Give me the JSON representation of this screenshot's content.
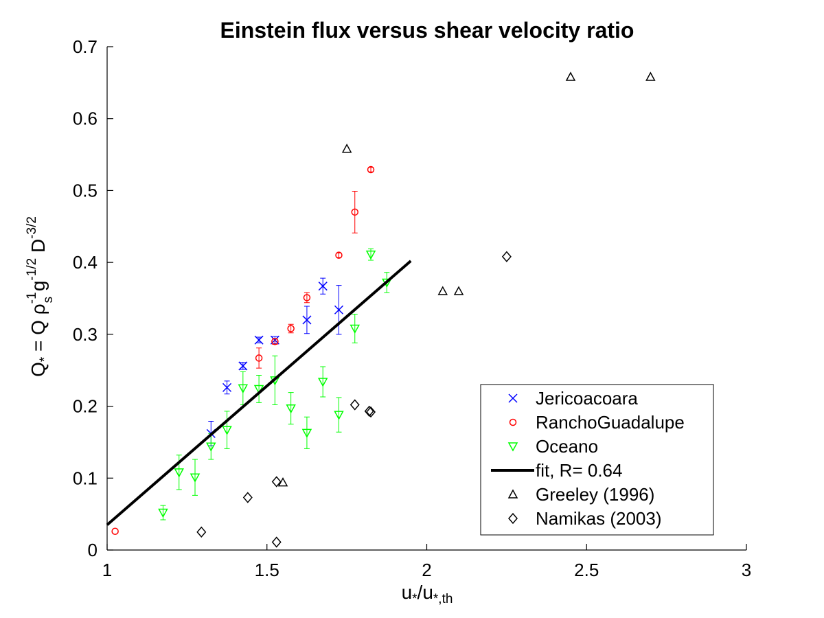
{
  "chart_data": {
    "type": "scatter",
    "title": "Einstein flux versus shear velocity ratio",
    "xlabel": {
      "main": "u",
      "sub1": "*",
      "mid": "/u",
      "sub2": "*,th"
    },
    "ylabel": {
      "main": "Q",
      "sub_star": "*",
      "eq": " = Q ",
      "rho": "ρ",
      "rho_sup": "-1",
      "rho_sub": "s",
      "g": " g",
      "g_sup": "-1/2",
      "D": " D",
      "D_sup": "-3/2"
    },
    "xlim": [
      1,
      3
    ],
    "ylim": [
      0,
      0.7
    ],
    "xticks": [
      {
        "v": 1,
        "label": "1"
      },
      {
        "v": 1.5,
        "label": "1.5"
      },
      {
        "v": 2,
        "label": "2"
      },
      {
        "v": 2.5,
        "label": "2.5"
      },
      {
        "v": 3,
        "label": "3"
      }
    ],
    "yticks": [
      {
        "v": 0,
        "label": "0"
      },
      {
        "v": 0.1,
        "label": "0.1"
      },
      {
        "v": 0.2,
        "label": "0.2"
      },
      {
        "v": 0.3,
        "label": "0.3"
      },
      {
        "v": 0.4,
        "label": "0.4"
      },
      {
        "v": 0.5,
        "label": "0.5"
      },
      {
        "v": 0.6,
        "label": "0.6"
      },
      {
        "v": 0.7,
        "label": "0.7"
      }
    ],
    "grid": false,
    "legend_position": "bottom-right",
    "series": [
      {
        "name": "Jericoacoara",
        "marker": "x",
        "color": "#0000ff",
        "points": [
          {
            "x": 1.325,
            "y": 0.162,
            "err": 0.017
          },
          {
            "x": 1.375,
            "y": 0.226,
            "err": 0.009
          },
          {
            "x": 1.425,
            "y": 0.256,
            "err": 0.005
          },
          {
            "x": 1.475,
            "y": 0.292,
            "err": 0.004
          },
          {
            "x": 1.525,
            "y": 0.292,
            "err": 0.005
          },
          {
            "x": 1.625,
            "y": 0.32,
            "err": 0.019
          },
          {
            "x": 1.675,
            "y": 0.367,
            "err": 0.011
          },
          {
            "x": 1.725,
            "y": 0.334,
            "err": 0.034
          }
        ]
      },
      {
        "name": "RanchoGuadalupe",
        "marker": "circle",
        "color": "#ff0000",
        "points": [
          {
            "x": 1.025,
            "y": 0.026,
            "err": 0
          },
          {
            "x": 1.475,
            "y": 0.267,
            "err": 0.014
          },
          {
            "x": 1.525,
            "y": 0.29,
            "err": 0.004
          },
          {
            "x": 1.575,
            "y": 0.308,
            "err": 0.006
          },
          {
            "x": 1.625,
            "y": 0.351,
            "err": 0.007
          },
          {
            "x": 1.725,
            "y": 0.41,
            "err": 0.003
          },
          {
            "x": 1.775,
            "y": 0.47,
            "err": 0.029
          },
          {
            "x": 1.825,
            "y": 0.529,
            "err": 0.003
          }
        ]
      },
      {
        "name": "Oceano",
        "marker": "triangle-down",
        "color": "#00ff00",
        "points": [
          {
            "x": 1.175,
            "y": 0.052,
            "err": 0.01
          },
          {
            "x": 1.225,
            "y": 0.108,
            "err": 0.024
          },
          {
            "x": 1.275,
            "y": 0.101,
            "err": 0.025
          },
          {
            "x": 1.325,
            "y": 0.144,
            "err": 0.018
          },
          {
            "x": 1.375,
            "y": 0.167,
            "err": 0.026
          },
          {
            "x": 1.425,
            "y": 0.225,
            "err": 0.023
          },
          {
            "x": 1.475,
            "y": 0.224,
            "err": 0.019
          },
          {
            "x": 1.525,
            "y": 0.236,
            "err": 0.034
          },
          {
            "x": 1.575,
            "y": 0.197,
            "err": 0.022
          },
          {
            "x": 1.625,
            "y": 0.163,
            "err": 0.022
          },
          {
            "x": 1.675,
            "y": 0.234,
            "err": 0.021
          },
          {
            "x": 1.725,
            "y": 0.188,
            "err": 0.024
          },
          {
            "x": 1.775,
            "y": 0.308,
            "err": 0.02
          },
          {
            "x": 1.825,
            "y": 0.411,
            "err": 0.008
          },
          {
            "x": 1.875,
            "y": 0.372,
            "err": 0.014
          }
        ]
      },
      {
        "name": "fit, R= 0.64",
        "marker": "line",
        "color": "#000000",
        "x": [
          1.0,
          1.95
        ],
        "y": [
          0.035,
          0.402
        ]
      },
      {
        "name": "Greeley (1996)",
        "marker": "triangle-up",
        "color": "#000000",
        "points": [
          {
            "x": 1.55,
            "y": 0.094
          },
          {
            "x": 1.75,
            "y": 0.558
          },
          {
            "x": 2.05,
            "y": 0.36
          },
          {
            "x": 2.1,
            "y": 0.36
          },
          {
            "x": 2.45,
            "y": 0.658
          },
          {
            "x": 2.7,
            "y": 0.658
          }
        ]
      },
      {
        "name": "Namikas (2003)",
        "marker": "diamond",
        "color": "#000000",
        "points": [
          {
            "x": 1.295,
            "y": 0.025
          },
          {
            "x": 1.44,
            "y": 0.073
          },
          {
            "x": 1.53,
            "y": 0.011
          },
          {
            "x": 1.53,
            "y": 0.095
          },
          {
            "x": 1.775,
            "y": 0.202
          },
          {
            "x": 1.82,
            "y": 0.193
          },
          {
            "x": 1.825,
            "y": 0.192
          },
          {
            "x": 2.25,
            "y": 0.408
          }
        ]
      }
    ]
  }
}
